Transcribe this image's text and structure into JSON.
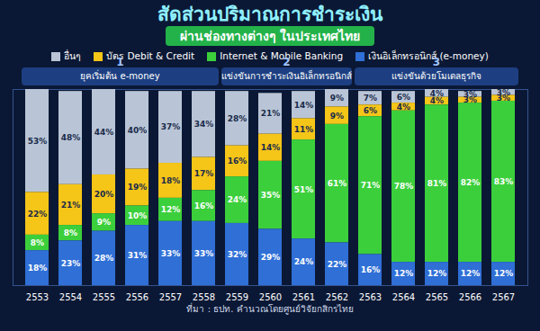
{
  "chart_data": {
    "type": "bar",
    "title": "สัดส่วนปริมาณการชำระเงิน",
    "subtitle": "ผ่านช่องทางต่างๆ ในประเทศไทย",
    "source": "ที่มา : ธปท. คำนวณโดยศูนย์วิจัยกสิกรไทย",
    "stacked": true,
    "data_labels": true,
    "tick_labels": "x",
    "legend": "top",
    "categories": [
      "2553",
      "2554",
      "2555",
      "2556",
      "2557",
      "2558",
      "2559",
      "2560",
      "2561",
      "2562",
      "2563",
      "2564",
      "2565",
      "2566",
      "2567"
    ],
    "ylim": [
      0,
      101
    ],
    "phases": [
      {
        "number": "1",
        "label": "ยุคเริ่มต้น e-money",
        "start": "2553",
        "end": "2558"
      },
      {
        "number": "2",
        "label": "แข่งขันการชำระเงินอิเล็กทรอนิกส์",
        "start": "2559",
        "end": "2562"
      },
      {
        "number": "3",
        "label": "แข่งขันด้วยโมเดลธุรกิจ",
        "start": "2563",
        "end": "2567"
      }
    ],
    "series": [
      {
        "name": "อื่นๆ",
        "color": "#b9c5d6",
        "values": [
          53,
          48,
          44,
          40,
          37,
          34,
          28,
          21,
          14,
          9,
          7,
          6,
          4,
          3,
          3
        ],
        "value_labels": [
          "53%",
          "48%",
          "44%",
          "40%",
          "37%",
          "34%",
          "28%",
          "21%",
          "14%",
          "9%",
          "7%",
          "6%",
          "4%",
          "3%",
          "3%"
        ]
      },
      {
        "name": "บัตร Debit & Credit",
        "color": "#f5c518",
        "values": [
          22,
          21,
          20,
          19,
          18,
          17,
          16,
          14,
          11,
          9,
          6,
          4,
          4,
          3,
          3
        ],
        "value_labels": [
          "22%",
          "21%",
          "20%",
          "19%",
          "18%",
          "17%",
          "16%",
          "14%",
          "11%",
          "9%",
          "6%",
          "4%",
          "4%",
          "3%",
          "3%"
        ]
      },
      {
        "name": "Internet & Mobile Banking",
        "color": "#3ccf3c",
        "values": [
          8,
          8,
          9,
          10,
          12,
          16,
          24,
          35,
          51,
          61,
          71,
          78,
          81,
          82,
          83
        ],
        "value_labels": [
          "8%",
          "8%",
          "9%",
          "10%",
          "12%",
          "16%",
          "24%",
          "35%",
          "51%",
          "61%",
          "71%",
          "78%",
          "81%",
          "82%",
          "83%"
        ]
      },
      {
        "name": "เงินอิเล็กทรอนิกส์ (e-money)",
        "color": "#2f6fd6",
        "values": [
          18,
          23,
          28,
          31,
          33,
          33,
          32,
          29,
          24,
          22,
          16,
          12,
          12,
          12,
          12
        ],
        "value_labels": [
          "18%",
          "23%",
          "28%",
          "31%",
          "33%",
          "33%",
          "32%",
          "29%",
          "24%",
          "22%",
          "16%",
          "12%",
          "12%",
          "12%",
          "12%"
        ]
      }
    ]
  }
}
